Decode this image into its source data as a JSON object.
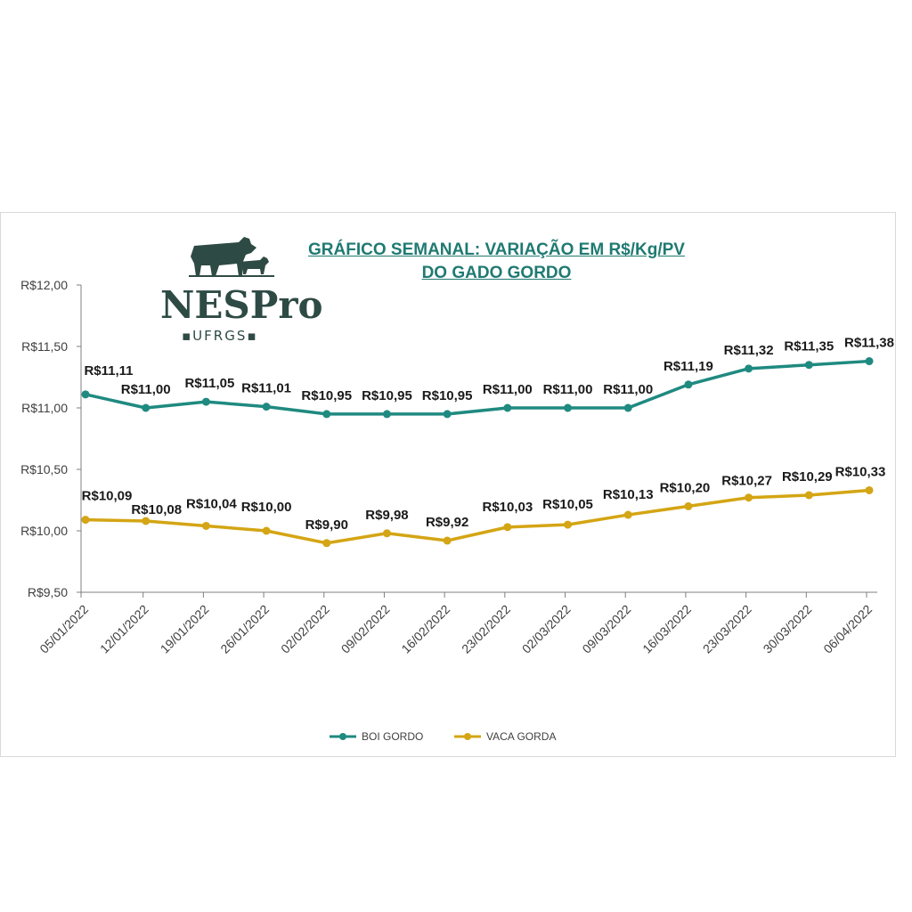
{
  "chart_data": {
    "type": "line",
    "title_lines": [
      "GRÁFICO SEMANAL: VARIAÇÃO EM R$/Kg/PV",
      "DO GADO GORDO"
    ],
    "xlabel": "",
    "ylabel": "",
    "categories": [
      "05/01/2022",
      "12/01/2022",
      "19/01/2022",
      "26/01/2022",
      "02/02/2022",
      "09/02/2022",
      "16/02/2022",
      "23/02/2022",
      "02/03/2022",
      "09/03/2022",
      "16/03/2022",
      "23/03/2022",
      "30/03/2022",
      "06/04/2022"
    ],
    "ylim": [
      9.5,
      12.0
    ],
    "y_ticks": [
      9.5,
      10.0,
      10.5,
      11.0,
      11.5,
      12.0
    ],
    "y_tick_labels": [
      "R$9,50",
      "R$10,00",
      "R$10,50",
      "R$11,00",
      "R$11,50",
      "R$12,00"
    ],
    "grid": false,
    "legend_position": "bottom",
    "series": [
      {
        "name": "BOI GORDO",
        "color": "#1f8a80",
        "values": [
          11.11,
          11.0,
          11.05,
          11.01,
          10.95,
          10.95,
          10.95,
          11.0,
          11.0,
          11.0,
          11.19,
          11.32,
          11.35,
          11.38
        ],
        "labels": [
          "R$11,11",
          "R$11,00",
          "R$11,05",
          "R$11,01",
          "R$10,95",
          "R$10,95",
          "R$10,95",
          "R$11,00",
          "R$11,00",
          "R$11,00",
          "R$11,19",
          "R$11,32",
          "R$11,35",
          "R$11,38"
        ]
      },
      {
        "name": "VACA GORDA",
        "color": "#d4a514",
        "values": [
          10.09,
          10.08,
          10.04,
          10.0,
          9.9,
          9.98,
          9.92,
          10.03,
          10.05,
          10.13,
          10.2,
          10.27,
          10.29,
          10.33
        ],
        "labels": [
          "R$10,09",
          "R$10,08",
          "R$10,04",
          "R$10,00",
          "R$9,90",
          "R$9,98",
          "R$9,92",
          "R$10,03",
          "R$10,05",
          "R$10,13",
          "R$10,20",
          "R$10,27",
          "R$10,29",
          "R$10,33"
        ]
      }
    ]
  },
  "logo": {
    "word": "NESPro",
    "sub": "▪UFRGS▪"
  }
}
